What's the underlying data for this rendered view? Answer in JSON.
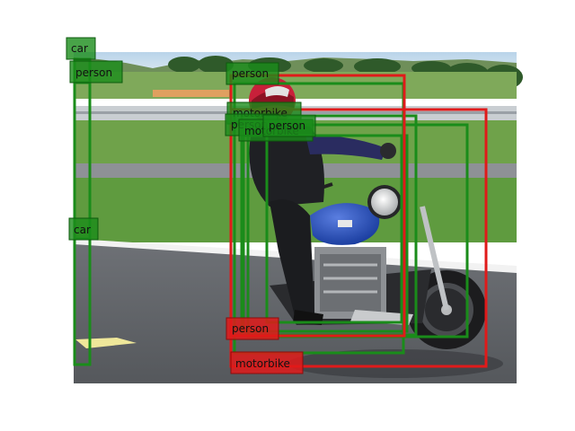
{
  "colors": {
    "ground_truth": "#1a8c1a",
    "prediction": "#e01a1a",
    "label_text": "#111111"
  },
  "detections": [
    {
      "id": "gt-car-1",
      "label": "car",
      "kind": "ground_truth"
    },
    {
      "id": "gt-person-1",
      "label": "person",
      "kind": "ground_truth"
    },
    {
      "id": "gt-car-2",
      "label": "car",
      "kind": "ground_truth"
    },
    {
      "id": "gt-person-2",
      "label": "person",
      "kind": "ground_truth"
    },
    {
      "id": "gt-motorbike-1",
      "label": "motorbike",
      "kind": "ground_truth"
    },
    {
      "id": "gt-person-3",
      "label": "person",
      "kind": "ground_truth"
    },
    {
      "id": "gt-motorbike-2",
      "label": "motorbike",
      "kind": "ground_truth"
    },
    {
      "id": "gt-person-4",
      "label": "person",
      "kind": "ground_truth"
    },
    {
      "id": "pred-person-1",
      "label": "person",
      "kind": "prediction"
    },
    {
      "id": "pred-motorbike-1",
      "label": "motorbike",
      "kind": "prediction"
    }
  ]
}
